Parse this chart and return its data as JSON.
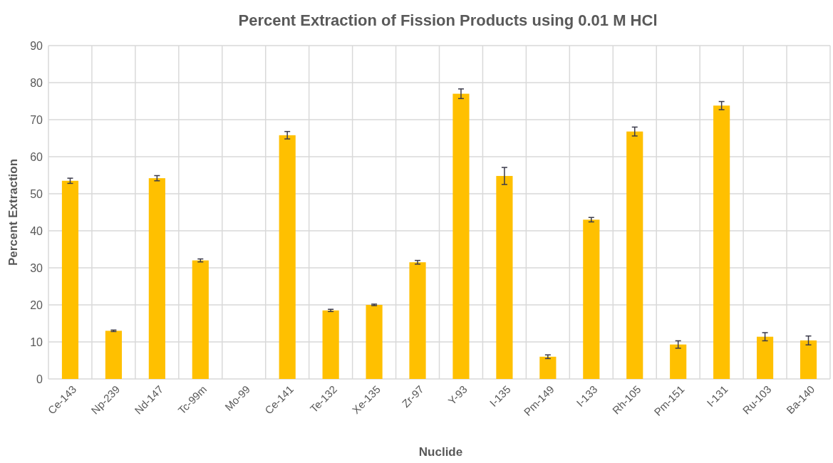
{
  "chart_data": {
    "type": "bar",
    "title": "Percent Extraction of Fission Products using 0.01 M HCl",
    "xlabel": "Nuclide",
    "ylabel": "Percent Extraction",
    "categories": [
      "Ce-143",
      "Np-239",
      "Nd-147",
      "Tc-99m",
      "Mo-99",
      "Ce-141",
      "Te-132",
      "Xe-135",
      "Zr-97",
      "Y-93",
      "I-135",
      "Pm-149",
      "I-133",
      "Rh-105",
      "Pm-151",
      "I-131",
      "Ru-103",
      "Ba-140"
    ],
    "values": [
      53.5,
      13,
      54.2,
      32,
      null,
      65.8,
      18.5,
      20,
      31.5,
      77,
      54.8,
      6,
      43,
      66.8,
      9.3,
      73.8,
      11.4,
      10.4
    ],
    "errors": [
      0.7,
      0.2,
      0.7,
      0.4,
      null,
      1,
      0.3,
      0.2,
      0.5,
      1.3,
      2.3,
      0.5,
      0.6,
      1.2,
      1,
      1.1,
      1.1,
      1.2
    ],
    "color": "#ffc000",
    "ylim": [
      0,
      90
    ],
    "yticks": [
      0,
      10,
      20,
      30,
      40,
      50,
      60,
      70,
      80,
      90
    ],
    "grid": true
  }
}
